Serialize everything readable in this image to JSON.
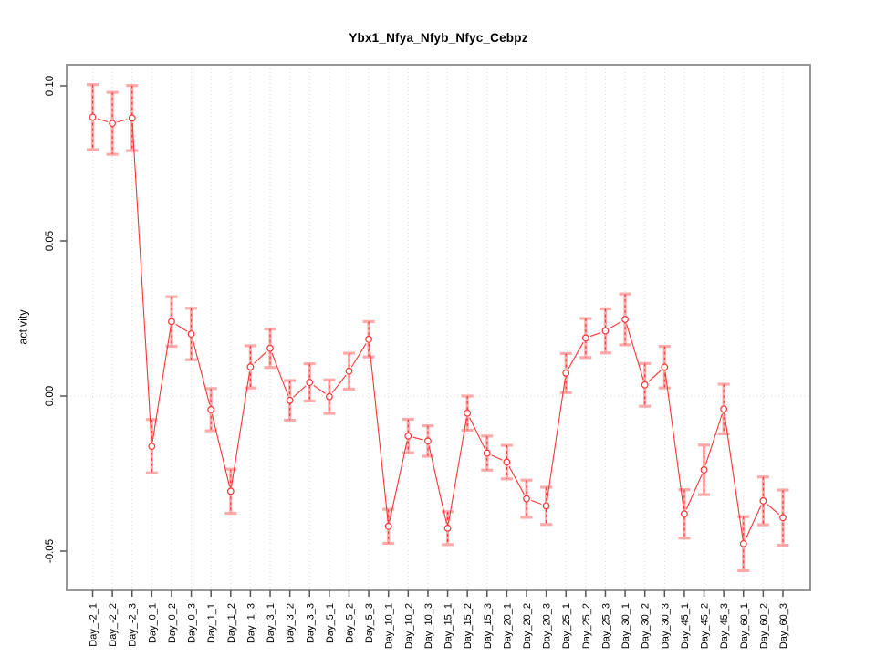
{
  "chart_data": {
    "type": "line",
    "title": "Ybx1_Nfya_Nfyb_Nfyc_Cebpz",
    "xlabel": "",
    "ylabel": "activity",
    "legend": "none",
    "grid": {
      "vertical_at_every_category": true,
      "horizontal_at_zero_only": true,
      "style": "dotted"
    },
    "point_style": "open-circle",
    "line_style": "solid-with-gaps-at-points",
    "error_bars": true,
    "ylim": [
      -0.063,
      0.107
    ],
    "yticks": [
      -0.05,
      0,
      0.05,
      0.1
    ],
    "ytick_labels": [
      "-0.05",
      "0.00",
      "0.05",
      "0.10"
    ],
    "categories": [
      "Day_-2_1",
      "Day_-2_2",
      "Day_-2_3",
      "Day_0_1",
      "Day_0_2",
      "Day_0_3",
      "Day_1_1",
      "Day_1_2",
      "Day_1_3",
      "Day_3_1",
      "Day_3_2",
      "Day_3_3",
      "Day_5_1",
      "Day_5_2",
      "Day_5_3",
      "Day_10_1",
      "Day_10_2",
      "Day_10_3",
      "Day_15_1",
      "Day_15_2",
      "Day_15_3",
      "Day_20_1",
      "Day_20_2",
      "Day_20_3",
      "Day_25_1",
      "Day_25_2",
      "Day_25_3",
      "Day_30_1",
      "Day_30_2",
      "Day_30_3",
      "Day_45_1",
      "Day_45_2",
      "Day_45_3",
      "Day_60_1",
      "Day_60_2",
      "Day_60_3"
    ],
    "series": [
      {
        "name": "activity",
        "values": [
          0.0899,
          0.0879,
          0.0896,
          -0.0162,
          0.024,
          0.02,
          -0.0044,
          -0.0307,
          0.0094,
          0.0154,
          -0.0014,
          0.0044,
          -0.0002,
          0.008,
          0.0183,
          -0.042,
          -0.0129,
          -0.0145,
          -0.0426,
          -0.0055,
          -0.0184,
          -0.0213,
          -0.0331,
          -0.0354,
          0.0074,
          0.0187,
          0.021,
          0.0247,
          0.0036,
          0.0093,
          -0.038,
          -0.0238,
          -0.0042,
          -0.0476,
          -0.0338,
          -0.0392
        ],
        "errors": [
          0.0105,
          0.01,
          0.0105,
          0.0086,
          0.008,
          0.0083,
          0.0068,
          0.0071,
          0.0068,
          0.0062,
          0.0064,
          0.006,
          0.0054,
          0.0058,
          0.0057,
          0.0055,
          0.0054,
          0.0049,
          0.0053,
          0.0055,
          0.0055,
          0.0054,
          0.006,
          0.006,
          0.0063,
          0.0063,
          0.0071,
          0.0082,
          0.0069,
          0.0067,
          0.0078,
          0.008,
          0.008,
          0.0087,
          0.0077,
          0.0089
        ]
      }
    ],
    "colors": {
      "series": "#ff3333",
      "error_cap": "#ffaaaa",
      "gridline": "#d9d9d9",
      "box": "#8c8c8c",
      "tick": "#555555",
      "text": "#000000"
    }
  }
}
